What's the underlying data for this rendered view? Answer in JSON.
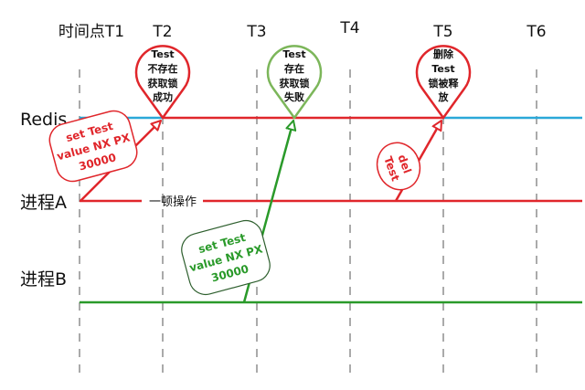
{
  "time_labels": [
    "时间点T1",
    "T2",
    "T3",
    "T4",
    "T5",
    "T6"
  ],
  "lanes": {
    "redis": "Redis",
    "process_a": "进程A",
    "process_b": "进程B"
  },
  "process_a_gap_label": "一顿操作",
  "pins": [
    {
      "lines": [
        "Test",
        "不存在",
        "获取锁",
        "成功"
      ],
      "color": "#e0262b"
    },
    {
      "lines": [
        "Test",
        "存在",
        "获取锁",
        "失败"
      ],
      "color": "#7cb65a"
    },
    {
      "lines": [
        "删除",
        "Test",
        "锁被释",
        "放"
      ],
      "color": "#e0262b"
    }
  ],
  "commands": {
    "a_set": {
      "lines": [
        "set  Test",
        "value NX  PX",
        "30000"
      ],
      "color": "#e0262b"
    },
    "b_set": {
      "lines": [
        "set  Test",
        "value NX  PX",
        "30000"
      ],
      "color": "#2a9a2a"
    },
    "a_del": {
      "lines": [
        "del",
        "Test"
      ],
      "color": "#e0262b"
    }
  },
  "colors": {
    "redis_free": "#2aa8d8",
    "redis_locked": "#e0262b",
    "process_a": "#e0262b",
    "process_b": "#2a9a2a",
    "grid": "#aaaaaa"
  }
}
